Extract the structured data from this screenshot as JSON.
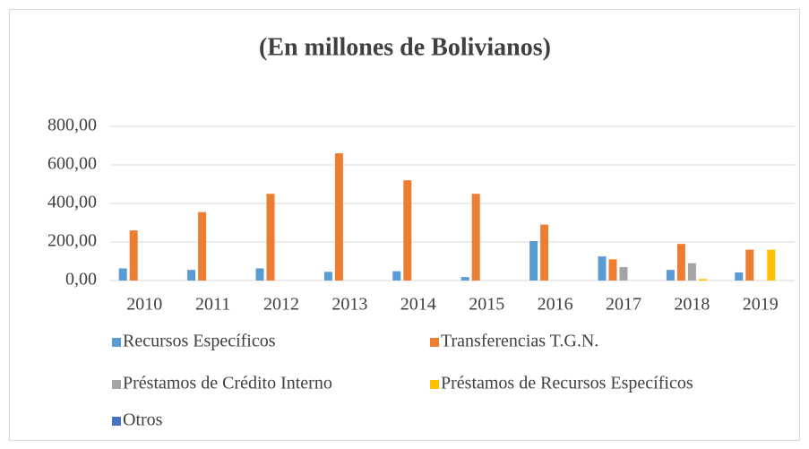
{
  "chart_data": {
    "type": "bar",
    "title": "(En millones de Bolivianos)",
    "categories": [
      "2010",
      "2011",
      "2012",
      "2013",
      "2014",
      "2015",
      "2016",
      "2017",
      "2018",
      "2019"
    ],
    "series": [
      {
        "name": "Recursos Específicos",
        "color": "#5b9bd5",
        "values": [
          63,
          55,
          63,
          45,
          48,
          18,
          205,
          125,
          55,
          42
        ]
      },
      {
        "name": "Transferencias T.G.N.",
        "color": "#ed7d31",
        "values": [
          260,
          355,
          450,
          660,
          520,
          450,
          290,
          110,
          190,
          160
        ]
      },
      {
        "name": "Préstamos de Crédito Interno",
        "color": "#a5a5a5",
        "values": [
          0,
          0,
          0,
          0,
          0,
          0,
          0,
          70,
          90,
          0
        ]
      },
      {
        "name": "Préstamos de Recursos Específicos",
        "color": "#ffc000",
        "values": [
          0,
          0,
          0,
          0,
          0,
          0,
          0,
          0,
          8,
          160
        ]
      },
      {
        "name": "Otros",
        "color": "#4472c4",
        "values": [
          0,
          0,
          0,
          0,
          0,
          0,
          0,
          0,
          0,
          0
        ]
      }
    ],
    "ylim": [
      0,
      800
    ],
    "yticks": [
      {
        "value": 0,
        "label": "0,00"
      },
      {
        "value": 200,
        "label": "200,00"
      },
      {
        "value": 400,
        "label": "400,00"
      },
      {
        "value": 600,
        "label": "600,00"
      },
      {
        "value": 800,
        "label": "800,00"
      }
    ],
    "grid": true,
    "legend": "bottom"
  }
}
